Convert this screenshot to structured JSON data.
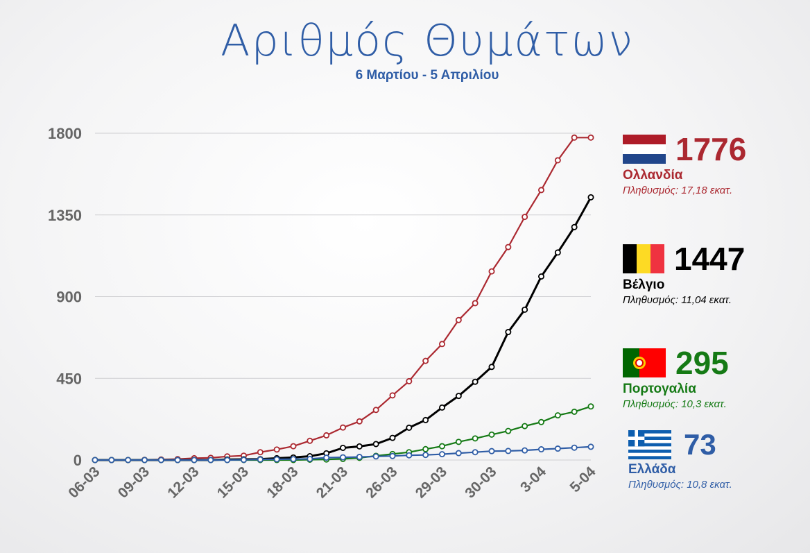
{
  "header": {
    "title": "Αριθμός Θυμάτων",
    "subtitle": "6 Μαρτίου - 5 Απριλίου"
  },
  "legend": [
    {
      "key": "nl",
      "count": "1776",
      "name": "Ολλανδία",
      "population": "Πληθυσμός: 17,18 εκατ.",
      "color": "#ab2830",
      "flag_icon": "netherlands-flag-icon"
    },
    {
      "key": "be",
      "count": "1447",
      "name": "Βέλγιο",
      "population": "Πληθυσμός: 11,04 εκατ.",
      "color": "#000000",
      "flag_icon": "belgium-flag-icon"
    },
    {
      "key": "pt",
      "count": "295",
      "name": "Πορτογαλία",
      "population": "Πληθυσμός: 10,3 εκατ.",
      "color": "#157a15",
      "flag_icon": "portugal-flag-icon"
    },
    {
      "key": "gr",
      "count": "73",
      "name": "Ελλάδα",
      "population": "Πληθυσμός: 10,8 εκατ.",
      "color": "#2f5da6",
      "flag_icon": "greece-flag-icon"
    }
  ],
  "chart_data": {
    "type": "line",
    "title": "Αριθμός Θυμάτων",
    "subtitle": "6 Μαρτίου - 5 Απριλίου",
    "xlabel": "",
    "ylabel": "",
    "ylim": [
      0,
      1800
    ],
    "yticks": [
      0,
      450,
      900,
      1350,
      1800
    ],
    "grid": true,
    "x_tick_labels": [
      "06-03",
      "09-03",
      "12-03",
      "15-03",
      "18-03",
      "21-03",
      "26-03",
      "29-03",
      "30-03",
      "3-04",
      "5-04"
    ],
    "x_tick_indices": [
      0,
      3,
      6,
      9,
      12,
      15,
      18,
      21,
      24,
      27,
      30
    ],
    "point_count": 31,
    "series": [
      {
        "name": "Ολλανδία",
        "color": "#ab2830",
        "values": [
          0,
          0,
          0,
          1,
          3,
          5,
          10,
          12,
          20,
          24,
          43,
          58,
          76,
          106,
          136,
          179,
          213,
          276,
          356,
          434,
          546,
          639,
          771,
          864,
          1039,
          1173,
          1339,
          1487,
          1651,
          1776,
          1776
        ]
      },
      {
        "name": "Βέλγιο",
        "color": "#000000",
        "values": [
          0,
          0,
          0,
          0,
          0,
          0,
          0,
          0,
          3,
          4,
          5,
          10,
          14,
          21,
          37,
          67,
          75,
          88,
          122,
          178,
          220,
          289,
          353,
          431,
          513,
          705,
          828,
          1011,
          1143,
          1283,
          1447
        ]
      },
      {
        "name": "Πορτογαλία",
        "color": "#157a15",
        "values": [
          0,
          0,
          0,
          0,
          0,
          0,
          0,
          0,
          0,
          0,
          0,
          0,
          0,
          2,
          3,
          6,
          12,
          23,
          33,
          43,
          60,
          76,
          100,
          119,
          140,
          160,
          187,
          209,
          246,
          266,
          295
        ]
      },
      {
        "name": "Ελλάδα",
        "color": "#2f5da6",
        "values": [
          0,
          0,
          0,
          0,
          0,
          0,
          0,
          0,
          0,
          1,
          3,
          4,
          5,
          6,
          13,
          15,
          17,
          20,
          22,
          26,
          28,
          32,
          38,
          43,
          49,
          50,
          53,
          59,
          63,
          68,
          73
        ]
      }
    ]
  }
}
